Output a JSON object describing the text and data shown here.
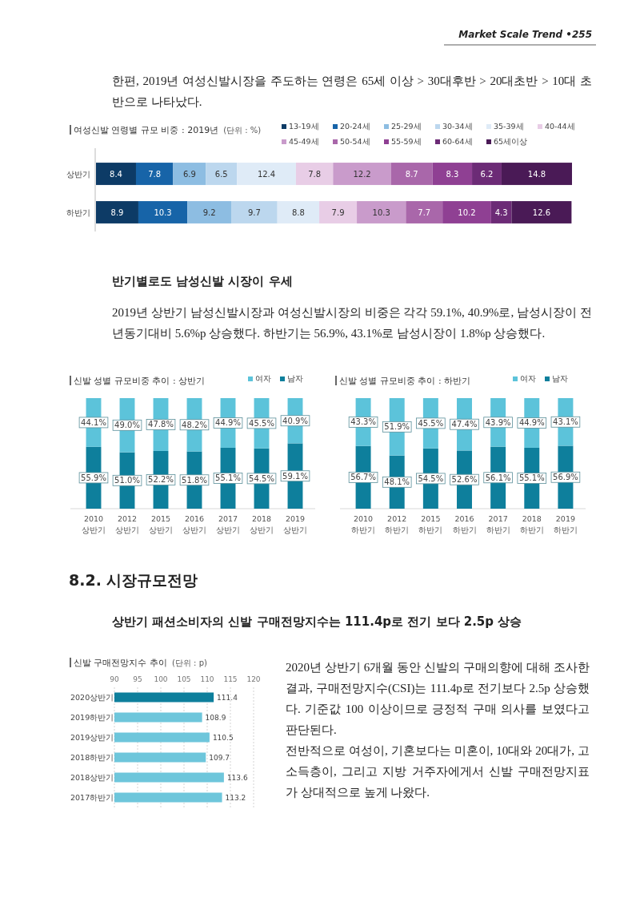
{
  "chart_data": [
    {
      "type": "bar",
      "orientation": "horizontal",
      "stacked": true,
      "data_labels": true,
      "legend": "top right",
      "title": "여성신발 연령별 규모 비중 : 2019년",
      "subtitle": "(단위 : %)",
      "annotations": [
        "Market Scale Trend •255",
        "한편, 2019년 여성신발시장을 주도하는 연령은 65세 이상 > 30대후반 > 20대초반 > 10대 초반으로 나타났다."
      ],
      "categories": [
        "상반기",
        "하반기"
      ],
      "series": [
        {
          "name": "13-19세",
          "color": "#0d3b66",
          "values": [
            8.4,
            8.9
          ]
        },
        {
          "name": "20-24세",
          "color": "#1764a8",
          "values": [
            7.8,
            10.3
          ]
        },
        {
          "name": "25-29세",
          "color": "#8dbde2",
          "values": [
            6.9,
            9.2
          ]
        },
        {
          "name": "30-34세",
          "color": "#bcd7ee",
          "values": [
            6.5,
            9.7
          ]
        },
        {
          "name": "35-39세",
          "color": "#dfebf7",
          "values": [
            12.4,
            8.8
          ]
        },
        {
          "name": "40-44세",
          "color": "#e8cde6",
          "values": [
            7.8,
            7.9
          ]
        },
        {
          "name": "45-49세",
          "color": "#c99bcb",
          "values": [
            12.2,
            10.3
          ]
        },
        {
          "name": "50-54세",
          "color": "#a967aa",
          "values": [
            8.7,
            7.7
          ]
        },
        {
          "name": "55-59세",
          "color": "#8f4093",
          "values": [
            8.3,
            10.2
          ]
        },
        {
          "name": "60-64세",
          "color": "#6c2b76",
          "values": [
            6.2,
            4.3
          ]
        },
        {
          "name": "65세이상",
          "color": "#4a1a56",
          "values": [
            14.8,
            12.6
          ]
        }
      ]
    },
    {
      "type": "bar",
      "stacked": true,
      "legend": "top right",
      "title": "신발 성별 규모비중 추이 : 상반기",
      "annotations": [
        "반기별로도 남성신발 시장이 우세",
        "2019년 상반기 남성신발시장과 여성신발시장의 비중은 각각 59.1%, 40.9%로, 남성시장이 전년동기대비 5.6%p 상승했다. 하반기는 56.9%, 43.1%로 남성시장이 1.8%p 상승했다."
      ],
      "categories": [
        "2010 상반기",
        "2012 상반기",
        "2015 상반기",
        "2016 상반기",
        "2017 상반기",
        "2018 상반기",
        "2019 상반기"
      ],
      "series": [
        {
          "name": "남자",
          "color": "#0e7f9c",
          "values": [
            55.9,
            51.0,
            52.2,
            51.8,
            55.1,
            54.5,
            59.1
          ],
          "value_labels": [
            "55.9%",
            "51.0%",
            "52.2%",
            "51.8%",
            "55.1%",
            "54.5%",
            "59.1%"
          ]
        },
        {
          "name": "여자",
          "color": "#5cc3da",
          "values": [
            44.1,
            49.0,
            47.8,
            48.2,
            44.9,
            45.5,
            40.9
          ],
          "value_labels": [
            "44.1%",
            "49.0%",
            "47.8%",
            "48.2%",
            "44.9%",
            "45.5%",
            "40.9%"
          ]
        }
      ]
    },
    {
      "type": "bar",
      "stacked": true,
      "legend": "top right",
      "title": "신발 성별 규모비중 추이 : 하반기",
      "categories": [
        "2010 하반기",
        "2012 하반기",
        "2015 하반기",
        "2016 하반기",
        "2017 하반기",
        "2018 하반기",
        "2019 하반기"
      ],
      "series": [
        {
          "name": "남자",
          "color": "#0e7f9c",
          "values": [
            56.7,
            48.1,
            54.5,
            52.6,
            56.1,
            55.1,
            56.9
          ],
          "value_labels": [
            "56.7%",
            "48.1%",
            "54.5%",
            "52.6%",
            "56.1%",
            "55.1%",
            "56.9%"
          ]
        },
        {
          "name": "여자",
          "color": "#5cc3da",
          "values": [
            43.3,
            51.9,
            45.5,
            47.4,
            43.9,
            44.9,
            43.1
          ],
          "value_labels": [
            "43.3%",
            "51.9%",
            "45.5%",
            "47.4%",
            "43.9%",
            "44.9%",
            "43.1%"
          ]
        }
      ]
    },
    {
      "type": "bar",
      "orientation": "horizontal",
      "data_labels": true,
      "grid": "x",
      "title": "신발 구매전망지수 추이",
      "subtitle": "(단위 : p)",
      "annotations": [
        "8.2. 시장규모전망",
        "상반기 패션소비자의 신발 구매전망지수는 111.4p로 전기 보다 2.5p 상승",
        "2020년 상반기 6개월 동안 신발의 구매의향에 대해 조사한 결과, 구매전망지수(CSI)는 111.4p로 전기보다 2.5p 상승했다. 기준값 100 이상이므로 긍정적 구매 의사를 보였다고 판단된다.",
        "전반적으로 여성이, 기혼보다는 미혼이, 10대와 20대가, 고소득층이, 그리고 지방 거주자에게서 신발 구매전망지표가 상대적으로 높게 나왔다."
      ],
      "categories": [
        "2020상반기",
        "2019하반기",
        "2019상반기",
        "2018하반기",
        "2018상반기",
        "2017하반기"
      ],
      "values": [
        111.4,
        108.9,
        110.5,
        109.7,
        113.6,
        113.2
      ],
      "colors": [
        "#0e7f9c",
        "#6ec6db",
        "#6ec6db",
        "#6ec6db",
        "#6ec6db",
        "#6ec6db"
      ],
      "xlim": [
        90,
        120
      ],
      "xticks": [
        90,
        95,
        100,
        105,
        110,
        115,
        120
      ]
    }
  ]
}
